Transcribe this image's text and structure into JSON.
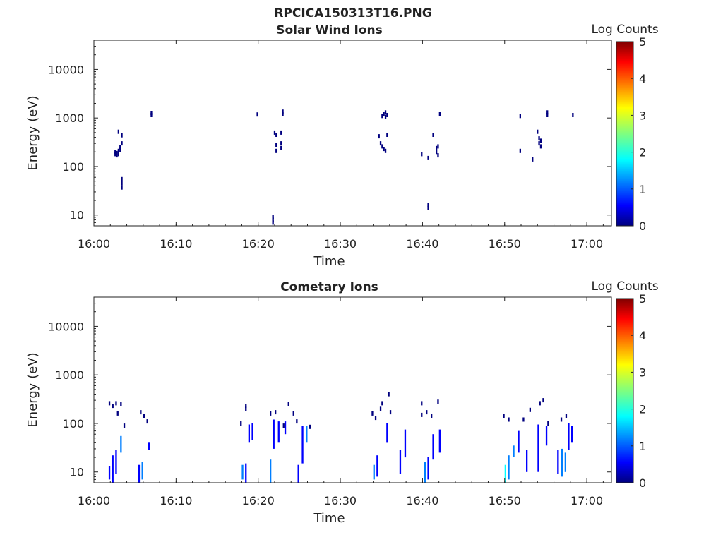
{
  "figure_title": "RPCICA150313T16.PNG",
  "colors": {
    "colormap": [
      "#00007f",
      "#0000ff",
      "#007fff",
      "#00ffff",
      "#7fff7f",
      "#ffff00",
      "#ff7f00",
      "#ff0000",
      "#7f0000"
    ],
    "axis": "#222222"
  },
  "chart_data": [
    {
      "type": "heatmap",
      "title": "Solar Wind Ions",
      "xlabel": "Time",
      "ylabel": "Energy (eV)",
      "x_scale": "time",
      "y_scale": "log",
      "xlim": [
        "16:00",
        "17:03"
      ],
      "ylim": [
        6,
        40000
      ],
      "xticks": [
        "16:00",
        "16:10",
        "16:20",
        "16:30",
        "16:40",
        "16:50",
        "17:00"
      ],
      "yticks": [
        10,
        100,
        1000,
        10000
      ],
      "yticklabels": [
        "10",
        "100",
        "1000",
        "10000"
      ],
      "colorbar": {
        "label": "Log Counts",
        "range": [
          0,
          5
        ],
        "ticks": [
          "0",
          "1",
          "2",
          "3",
          "4",
          "5"
        ]
      },
      "cells": [
        {
          "t": "16:02.5",
          "e": 180,
          "v": 0.1
        },
        {
          "t": "16:02.5",
          "e": 200,
          "v": 0.1
        },
        {
          "t": "16:02.7",
          "e": 170,
          "v": 0.1
        },
        {
          "t": "16:02.7",
          "e": 190,
          "v": 0.1
        },
        {
          "t": "16:02.9",
          "e": 210,
          "v": 0.1
        },
        {
          "t": "16:02.9",
          "e": 180,
          "v": 0.1
        },
        {
          "t": "16:03.1",
          "e": 250,
          "v": 0.1
        },
        {
          "t": "16:03.1",
          "e": 220,
          "v": 0.1
        },
        {
          "t": "16:03.3",
          "e": 300,
          "v": 0.1
        },
        {
          "t": "16:02.9",
          "e": 520,
          "v": 0.1
        },
        {
          "t": "16:03.3",
          "e": 440,
          "v": 0.1
        },
        {
          "t": "16:03.3",
          "e": 55,
          "v": 0.1
        },
        {
          "t": "16:03.3",
          "e": 45,
          "v": 0.1
        },
        {
          "t": "16:03.3",
          "e": 37,
          "v": 0.1
        },
        {
          "t": "16:06.9",
          "e": 1150,
          "v": 0.1
        },
        {
          "t": "16:06.9",
          "e": 1270,
          "v": 0.1
        },
        {
          "t": "16:19.8",
          "e": 1180,
          "v": 0.1
        },
        {
          "t": "16:21.7",
          "e": 7,
          "v": 0.1
        },
        {
          "t": "16:21.7",
          "e": 8,
          "v": 0.1
        },
        {
          "t": "16:21.7",
          "e": 9,
          "v": 0.1
        },
        {
          "t": "16:21.9",
          "e": 500,
          "v": 0.1
        },
        {
          "t": "16:22.1",
          "e": 450,
          "v": 0.1
        },
        {
          "t": "16:22.1",
          "e": 280,
          "v": 0.1
        },
        {
          "t": "16:22.1",
          "e": 210,
          "v": 0.1
        },
        {
          "t": "16:22.7",
          "e": 300,
          "v": 0.1
        },
        {
          "t": "16:22.7",
          "e": 240,
          "v": 0.1
        },
        {
          "t": "16:22.7",
          "e": 500,
          "v": 0.1
        },
        {
          "t": "16:22.9",
          "e": 1200,
          "v": 0.1
        },
        {
          "t": "16:22.9",
          "e": 1350,
          "v": 0.1
        },
        {
          "t": "16:34.6",
          "e": 420,
          "v": 0.1
        },
        {
          "t": "16:34.8",
          "e": 300,
          "v": 0.1
        },
        {
          "t": "16:35.0",
          "e": 260,
          "v": 0.1
        },
        {
          "t": "16:35.2",
          "e": 230,
          "v": 0.1
        },
        {
          "t": "16:35.0",
          "e": 1100,
          "v": 0.1
        },
        {
          "t": "16:35.2",
          "e": 1200,
          "v": 0.1
        },
        {
          "t": "16:35.4",
          "e": 1050,
          "v": 0.1
        },
        {
          "t": "16:35.4",
          "e": 1300,
          "v": 0.1
        },
        {
          "t": "16:35.6",
          "e": 1150,
          "v": 0.1
        },
        {
          "t": "16:35.6",
          "e": 450,
          "v": 0.1
        },
        {
          "t": "16:35.4",
          "e": 210,
          "v": 0.1
        },
        {
          "t": "16:39.8",
          "e": 180,
          "v": 0.1
        },
        {
          "t": "16:40.6",
          "e": 14,
          "v": 0.1
        },
        {
          "t": "16:40.6",
          "e": 16,
          "v": 0.1
        },
        {
          "t": "16:40.6",
          "e": 150,
          "v": 0.1
        },
        {
          "t": "16:41.2",
          "e": 450,
          "v": 0.1
        },
        {
          "t": "16:41.6",
          "e": 200,
          "v": 0.1
        },
        {
          "t": "16:41.6",
          "e": 240,
          "v": 0.1
        },
        {
          "t": "16:41.8",
          "e": 260,
          "v": 0.1
        },
        {
          "t": "16:41.8",
          "e": 170,
          "v": 0.1
        },
        {
          "t": "16:42.0",
          "e": 1200,
          "v": 0.1
        },
        {
          "t": "16:51.8",
          "e": 1100,
          "v": 0.1
        },
        {
          "t": "16:51.8",
          "e": 210,
          "v": 0.1
        },
        {
          "t": "16:53.3",
          "e": 140,
          "v": 0.1
        },
        {
          "t": "16:53.9",
          "e": 520,
          "v": 0.1
        },
        {
          "t": "16:54.1",
          "e": 380,
          "v": 0.1
        },
        {
          "t": "16:54.1",
          "e": 300,
          "v": 0.1
        },
        {
          "t": "16:54.3",
          "e": 340,
          "v": 0.1
        },
        {
          "t": "16:54.3",
          "e": 260,
          "v": 0.1
        },
        {
          "t": "16:55.1",
          "e": 1150,
          "v": 0.1
        },
        {
          "t": "16:55.1",
          "e": 1300,
          "v": 0.1
        },
        {
          "t": "16:58.2",
          "e": 1150,
          "v": 0.1
        }
      ]
    },
    {
      "type": "heatmap",
      "title": "Cometary Ions",
      "xlabel": "Time",
      "ylabel": "Energy (eV)",
      "x_scale": "time",
      "y_scale": "log",
      "xlim": [
        "16:00",
        "17:03"
      ],
      "ylim": [
        6,
        40000
      ],
      "xticks": [
        "16:00",
        "16:10",
        "16:20",
        "16:30",
        "16:40",
        "16:50",
        "17:00"
      ],
      "yticks": [
        10,
        100,
        1000,
        10000
      ],
      "yticklabels": [
        "10",
        "100",
        "1000",
        "10000"
      ],
      "colorbar": {
        "label": "Log Counts",
        "range": [
          0,
          5
        ],
        "ticks": [
          "0",
          "1",
          "2",
          "3",
          "4",
          "5"
        ]
      },
      "columns": [
        {
          "t": "16:01.8",
          "lo": 7,
          "hi": 13,
          "v": 0.8
        },
        {
          "t": "16:02.2",
          "lo": 6,
          "hi": 22,
          "v": 0.9
        },
        {
          "t": "16:02.6",
          "lo": 9,
          "hi": 28,
          "v": 0.7
        },
        {
          "t": "16:03.2",
          "lo": 25,
          "hi": 55,
          "v": 1.5
        },
        {
          "t": "16:05.4",
          "lo": 6,
          "hi": 14,
          "v": 0.8
        },
        {
          "t": "16:05.8",
          "lo": 7,
          "hi": 16,
          "v": 1.0
        },
        {
          "t": "16:06.6",
          "lo": 28,
          "hi": 40,
          "v": 0.9
        },
        {
          "t": "16:18.0",
          "lo": 7,
          "hi": 14,
          "v": 1.0
        },
        {
          "t": "16:18.4",
          "lo": 6,
          "hi": 15,
          "v": 0.9
        },
        {
          "t": "16:18.8",
          "lo": 40,
          "hi": 95,
          "v": 0.8
        },
        {
          "t": "16:19.2",
          "lo": 45,
          "hi": 100,
          "v": 0.7
        },
        {
          "t": "16:21.4",
          "lo": 6,
          "hi": 18,
          "v": 1.0
        },
        {
          "t": "16:21.8",
          "lo": 30,
          "hi": 120,
          "v": 0.6
        },
        {
          "t": "16:22.4",
          "lo": 40,
          "hi": 110,
          "v": 0.7
        },
        {
          "t": "16:23.2",
          "lo": 60,
          "hi": 110,
          "v": 0.8
        },
        {
          "t": "16:24.8",
          "lo": 6,
          "hi": 14,
          "v": 0.6
        },
        {
          "t": "16:25.3",
          "lo": 15,
          "hi": 90,
          "v": 0.9
        },
        {
          "t": "16:25.8",
          "lo": 40,
          "hi": 90,
          "v": 1.1
        },
        {
          "t": "16:34.0",
          "lo": 7,
          "hi": 14,
          "v": 1.0
        },
        {
          "t": "16:34.4",
          "lo": 8,
          "hi": 22,
          "v": 0.8
        },
        {
          "t": "16:35.6",
          "lo": 40,
          "hi": 100,
          "v": 0.6
        },
        {
          "t": "16:37.2",
          "lo": 9,
          "hi": 28,
          "v": 0.9
        },
        {
          "t": "16:37.8",
          "lo": 20,
          "hi": 75,
          "v": 0.7
        },
        {
          "t": "16:40.2",
          "lo": 6,
          "hi": 16,
          "v": 1.0
        },
        {
          "t": "16:40.6",
          "lo": 7,
          "hi": 20,
          "v": 0.9
        },
        {
          "t": "16:41.2",
          "lo": 18,
          "hi": 60,
          "v": 0.8
        },
        {
          "t": "16:42.0",
          "lo": 25,
          "hi": 75,
          "v": 0.7
        },
        {
          "t": "16:50.0",
          "lo": 6,
          "hi": 14,
          "v": 1.8
        },
        {
          "t": "16:50.4",
          "lo": 7,
          "hi": 22,
          "v": 1.2
        },
        {
          "t": "16:51.0",
          "lo": 20,
          "hi": 35,
          "v": 1.1
        },
        {
          "t": "16:51.6",
          "lo": 25,
          "hi": 70,
          "v": 0.9
        },
        {
          "t": "16:52.6",
          "lo": 10,
          "hi": 28,
          "v": 0.8
        },
        {
          "t": "16:54.0",
          "lo": 10,
          "hi": 95,
          "v": 0.7
        },
        {
          "t": "16:55.0",
          "lo": 35,
          "hi": 90,
          "v": 0.6
        },
        {
          "t": "16:56.4",
          "lo": 9,
          "hi": 28,
          "v": 0.9
        },
        {
          "t": "16:56.9",
          "lo": 8,
          "hi": 30,
          "v": 1.3
        },
        {
          "t": "16:57.3",
          "lo": 10,
          "hi": 25,
          "v": 1.0
        },
        {
          "t": "16:57.7",
          "lo": 28,
          "hi": 100,
          "v": 0.7
        },
        {
          "t": "16:58.1",
          "lo": 40,
          "hi": 90,
          "v": 0.8
        }
      ],
      "cells": [
        {
          "t": "16:01.8",
          "e": 260,
          "v": 0.1
        },
        {
          "t": "16:02.2",
          "e": 230,
          "v": 0.1
        },
        {
          "t": "16:02.6",
          "e": 260,
          "v": 0.1
        },
        {
          "t": "16:03.2",
          "e": 250,
          "v": 0.1
        },
        {
          "t": "16:02.8",
          "e": 160,
          "v": 0.1
        },
        {
          "t": "16:03.6",
          "e": 90,
          "v": 0.1
        },
        {
          "t": "16:05.6",
          "e": 170,
          "v": 0.1
        },
        {
          "t": "16:06.0",
          "e": 140,
          "v": 0.1
        },
        {
          "t": "16:06.4",
          "e": 110,
          "v": 0.1
        },
        {
          "t": "16:17.8",
          "e": 100,
          "v": 0.1
        },
        {
          "t": "16:18.4",
          "e": 230,
          "v": 0.1
        },
        {
          "t": "16:18.4",
          "e": 200,
          "v": 0.1
        },
        {
          "t": "16:21.4",
          "e": 160,
          "v": 0.1
        },
        {
          "t": "16:22.0",
          "e": 170,
          "v": 0.1
        },
        {
          "t": "16:23.0",
          "e": 90,
          "v": 0.1
        },
        {
          "t": "16:24.2",
          "e": 160,
          "v": 0.1
        },
        {
          "t": "16:24.6",
          "e": 110,
          "v": 0.1
        },
        {
          "t": "16:23.6",
          "e": 250,
          "v": 0.1
        },
        {
          "t": "16:26.2",
          "e": 85,
          "v": 0.1
        },
        {
          "t": "16:33.8",
          "e": 160,
          "v": 0.1
        },
        {
          "t": "16:34.2",
          "e": 130,
          "v": 0.1
        },
        {
          "t": "16:34.8",
          "e": 200,
          "v": 0.1
        },
        {
          "t": "16:35.0",
          "e": 260,
          "v": 0.1
        },
        {
          "t": "16:35.8",
          "e": 400,
          "v": 0.1
        },
        {
          "t": "16:36.0",
          "e": 170,
          "v": 0.1
        },
        {
          "t": "16:39.8",
          "e": 150,
          "v": 0.1
        },
        {
          "t": "16:39.8",
          "e": 260,
          "v": 0.1
        },
        {
          "t": "16:40.4",
          "e": 170,
          "v": 0.1
        },
        {
          "t": "16:41.0",
          "e": 140,
          "v": 0.1
        },
        {
          "t": "16:41.8",
          "e": 280,
          "v": 0.1
        },
        {
          "t": "16:49.8",
          "e": 140,
          "v": 0.1
        },
        {
          "t": "16:50.4",
          "e": 120,
          "v": 0.1
        },
        {
          "t": "16:52.2",
          "e": 120,
          "v": 0.1
        },
        {
          "t": "16:53.0",
          "e": 190,
          "v": 0.1
        },
        {
          "t": "16:54.2",
          "e": 260,
          "v": 0.1
        },
        {
          "t": "16:54.6",
          "e": 300,
          "v": 0.1
        },
        {
          "t": "16:55.2",
          "e": 100,
          "v": 0.1
        },
        {
          "t": "16:56.8",
          "e": 120,
          "v": 0.1
        },
        {
          "t": "16:57.4",
          "e": 140,
          "v": 0.1
        }
      ]
    }
  ]
}
